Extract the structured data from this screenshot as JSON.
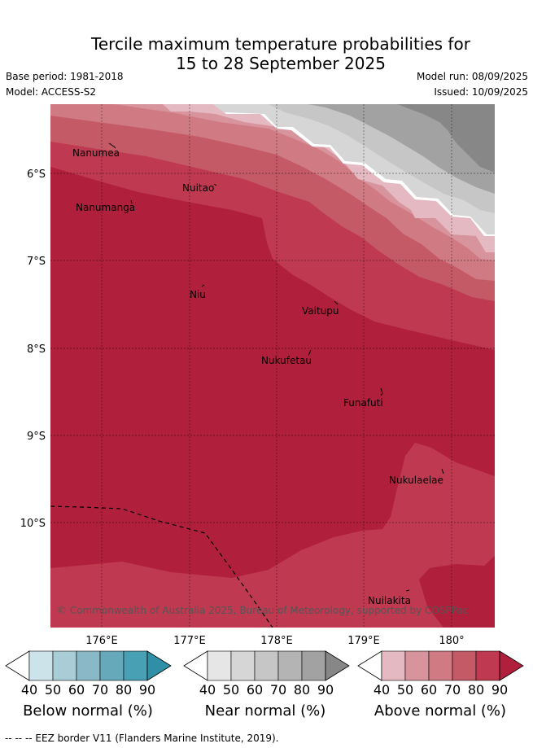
{
  "title_line1": "Tercile maximum temperature probabilities for",
  "title_line2": "15 to 28 September 2025",
  "base_period": "Base period: 1981-2018",
  "model": "Model: ACCESS-S2",
  "model_run": "Model run: 08/09/2025",
  "issued": "Issued: 10/09/2025",
  "lat_labels": [
    "6°S",
    "7°S",
    "8°S",
    "9°S",
    "10°S"
  ],
  "lon_labels": [
    "176°E",
    "177°E",
    "178°E",
    "179°E",
    "180°"
  ],
  "places": [
    {
      "name": "Nanumea"
    },
    {
      "name": "Nuitao"
    },
    {
      "name": "Nanumanga"
    },
    {
      "name": "Niu"
    },
    {
      "name": "Vaitupu"
    },
    {
      "name": "Nukufetau"
    },
    {
      "name": "Funafuti"
    },
    {
      "name": "Nukulaelae"
    },
    {
      "name": "Nuilakita"
    }
  ],
  "copyright": "© Commonwealth of Australia 2025, Bureau of Meteorology, supported by COSPPac",
  "colorbars": [
    {
      "label": "Below normal (%)",
      "ticks": [
        "40",
        "50",
        "60",
        "70",
        "80",
        "90"
      ],
      "colors": [
        "#ffffff",
        "#cce3ea",
        "#a9cdd6",
        "#89b8c6",
        "#66a9ba",
        "#48a0b4",
        "#2f8fa6"
      ]
    },
    {
      "label": "Near normal (%)",
      "ticks": [
        "40",
        "50",
        "60",
        "70",
        "80",
        "90"
      ],
      "colors": [
        "#ffffff",
        "#e6e6e6",
        "#d6d6d6",
        "#c6c6c6",
        "#b4b4b4",
        "#a2a2a2",
        "#878787"
      ]
    },
    {
      "label": "Above normal (%)",
      "ticks": [
        "40",
        "50",
        "60",
        "70",
        "80",
        "90"
      ],
      "colors": [
        "#ffffff",
        "#e4b9c1",
        "#d8949d",
        "#d07a84",
        "#c55a67",
        "#bf3a51",
        "#b01f3b"
      ]
    }
  ],
  "footer": "--  --  -- EEZ border V11 (Flanders Marine Institute, 2019)."
}
